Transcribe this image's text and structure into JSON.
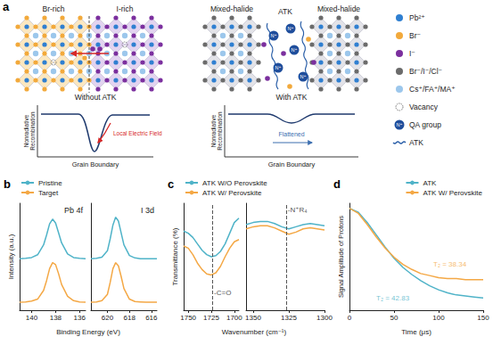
{
  "diagram": {
    "label": "a",
    "without": {
      "regions": [
        "Br-rich",
        "I-rich"
      ],
      "caption": "Without ATK",
      "ylabel": "Nonradiative Recombination",
      "xlabel": "Grain Boundary",
      "annotation": "Local Electric Field"
    },
    "with": {
      "regions": [
        "Mixed-halide",
        "Mixed-halide"
      ],
      "center": "ATK",
      "caption": "With ATK",
      "ylabel": "Nonradiative Recombination",
      "xlabel": "Grain Boundary",
      "annotation": "Flattened"
    },
    "qa_text": "N⁺",
    "legend": [
      {
        "label": "Pb²⁺",
        "color": "#2f7fd1"
      },
      {
        "label": "Br⁻",
        "color": "#f2a93b"
      },
      {
        "label": "I⁻",
        "color": "#7b2f9e"
      },
      {
        "label": "Br⁻/I⁻/Cl⁻",
        "color": "#6b6b6b"
      },
      {
        "label": "Cs⁺/FA⁺/MA⁺",
        "color": "#9cc7ec"
      },
      {
        "label": "Vacancy"
      },
      {
        "label": "QA group",
        "color": "#1f4e9c"
      },
      {
        "label": "ATK",
        "color": "#2b5fa8"
      }
    ]
  },
  "chart_data": [
    {
      "panel": "b",
      "type": "line",
      "title": "Pb 4f",
      "xlabel": "Binding Energy (eV)",
      "ylabel": "Intensity (a.u.)",
      "legend": "upper left",
      "tick_labels": "x",
      "grid": false,
      "x": [
        141,
        140.5,
        140,
        139.5,
        139,
        138.75,
        138.5,
        138.25,
        138,
        137.75,
        137.5,
        137,
        136.5,
        136,
        135.5
      ],
      "xlim": [
        141,
        135.5
      ],
      "xticks": [
        140,
        138,
        136
      ],
      "ylim": [
        -0.2,
        2.5
      ],
      "series": [
        {
          "name": "Pristine",
          "color": "#4fb3c8",
          "values": [
            1.1,
            1.11,
            1.13,
            1.2,
            1.45,
            1.7,
            1.98,
            2.1,
            2.0,
            1.75,
            1.5,
            1.22,
            1.13,
            1.11,
            1.1
          ]
        },
        {
          "name": "Target",
          "color": "#f4a845",
          "values": [
            0,
            0.01,
            0.03,
            0.08,
            0.3,
            0.55,
            0.85,
            1.0,
            0.95,
            0.72,
            0.45,
            0.15,
            0.04,
            0.01,
            0
          ]
        }
      ]
    },
    {
      "type": "line",
      "title": "I 3d",
      "tick_labels": "x",
      "grid": false,
      "x": [
        621.5,
        621,
        620.5,
        620,
        619.75,
        619.5,
        619.25,
        619,
        618.75,
        618.5,
        618,
        617.5,
        617,
        616.5,
        616,
        615.5
      ],
      "xlim": [
        621.5,
        615.5
      ],
      "xticks": [
        620,
        618,
        616
      ],
      "ylim": [
        -0.2,
        2.5
      ],
      "series": [
        {
          "name": "Pristine",
          "color": "#4fb3c8",
          "values": [
            1.1,
            1.11,
            1.14,
            1.3,
            1.6,
            1.95,
            2.15,
            2.05,
            1.75,
            1.45,
            1.18,
            1.12,
            1.1,
            1.1,
            1.1,
            1.1
          ]
        },
        {
          "name": "Target",
          "color": "#f4a845",
          "values": [
            0,
            0.01,
            0.04,
            0.2,
            0.5,
            0.85,
            1.0,
            0.92,
            0.65,
            0.35,
            0.08,
            0.02,
            0.01,
            0,
            0,
            0
          ]
        }
      ]
    },
    {
      "panel": "c",
      "type": "line",
      "xlabel": "Wavenumber (cm⁻¹)",
      "ylabel": "Transmittance (%)",
      "legend": "upper left",
      "tick_labels": "x",
      "grid": false,
      "x": [
        1755,
        1750,
        1745,
        1740,
        1735,
        1730,
        1725,
        1720,
        1715,
        1710,
        1705,
        1700,
        1695
      ],
      "xlim": [
        1755,
        1695
      ],
      "xticks": [
        1750,
        1725,
        1700
      ],
      "ylim": [
        0,
        100
      ],
      "series": [
        {
          "name": "ATK W/O Perovskite",
          "color": "#4fb3c8",
          "values": [
            74,
            72,
            68,
            62,
            56,
            52,
            50,
            51,
            55,
            62,
            72,
            82,
            86
          ]
        },
        {
          "name": "ATK W/ Perovskite",
          "color": "#f4a845",
          "values": [
            60,
            58,
            52,
            44,
            38,
            34,
            33,
            35,
            41,
            50,
            58,
            64,
            66
          ]
        }
      ],
      "annotations": [
        {
          "text": "-C=O",
          "x": 1724,
          "y": 16,
          "line_style": "dashed"
        }
      ]
    },
    {
      "type": "line",
      "tick_labels": "x",
      "grid": false,
      "x": [
        1355,
        1350,
        1345,
        1340,
        1335,
        1330,
        1325,
        1320,
        1315,
        1310,
        1305,
        1300
      ],
      "xlim": [
        1355,
        1300
      ],
      "xticks": [
        1350,
        1325,
        1300
      ],
      "ylim": [
        0,
        100
      ],
      "series": [
        {
          "name": "ATK W/O Perovskite",
          "color": "#4fb3c8",
          "values": [
            80,
            82,
            83,
            83,
            81,
            78,
            76,
            78,
            80,
            81,
            80,
            79
          ]
        },
        {
          "name": "ATK W/ Perovskite",
          "color": "#f4a845",
          "values": [
            76,
            78,
            79,
            79,
            77,
            74,
            71,
            73,
            76,
            77,
            76,
            75
          ]
        }
      ],
      "annotations": [
        {
          "text": "-N⁺R₄",
          "x": 1327,
          "y": 94,
          "line_style": "dashed"
        }
      ]
    },
    {
      "panel": "d",
      "type": "line",
      "xlabel": "Time (μs)",
      "ylabel": "Signal Amplitude of Protons",
      "legend": "upper right",
      "tick_labels": "x",
      "grid": false,
      "x": [
        0,
        10,
        20,
        30,
        40,
        50,
        60,
        70,
        80,
        90,
        100,
        110,
        120,
        130,
        140,
        150
      ],
      "xlim": [
        0,
        150
      ],
      "xticks": [
        0,
        50,
        100,
        150
      ],
      "ylim": [
        0,
        1.05
      ],
      "series": [
        {
          "name": "ATK",
          "color": "#4fb3c8",
          "values": [
            1.0,
            0.96,
            0.86,
            0.74,
            0.62,
            0.51,
            0.42,
            0.35,
            0.29,
            0.24,
            0.2,
            0.17,
            0.15,
            0.14,
            0.13,
            0.12
          ]
        },
        {
          "name": "ATK W/ Perovskite",
          "color": "#f4a845",
          "values": [
            1.0,
            0.95,
            0.84,
            0.72,
            0.61,
            0.52,
            0.45,
            0.4,
            0.36,
            0.34,
            0.32,
            0.31,
            0.31,
            0.3,
            0.3,
            0.3
          ]
        }
      ],
      "annotations": [
        {
          "text": "T₂ = 42.83",
          "x": 28,
          "y": 0.12,
          "color": "#4fb3c8"
        },
        {
          "text": "T₂ = 38.34",
          "x": 92,
          "y": 0.45,
          "color": "#f4a845"
        }
      ]
    }
  ]
}
